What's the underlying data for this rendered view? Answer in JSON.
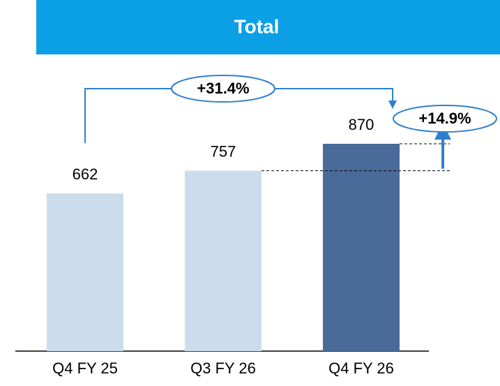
{
  "chart_data": {
    "type": "bar",
    "title": "Total",
    "categories": [
      "Q4 FY 25",
      "Q3 FY 26",
      "Q4 FY 26"
    ],
    "values": [
      662,
      757,
      870
    ],
    "colors": [
      "#ccdcec",
      "#ccdcec",
      "#4a6a9a"
    ],
    "annotations": [
      "+31.4%",
      "+14.9%"
    ]
  }
}
